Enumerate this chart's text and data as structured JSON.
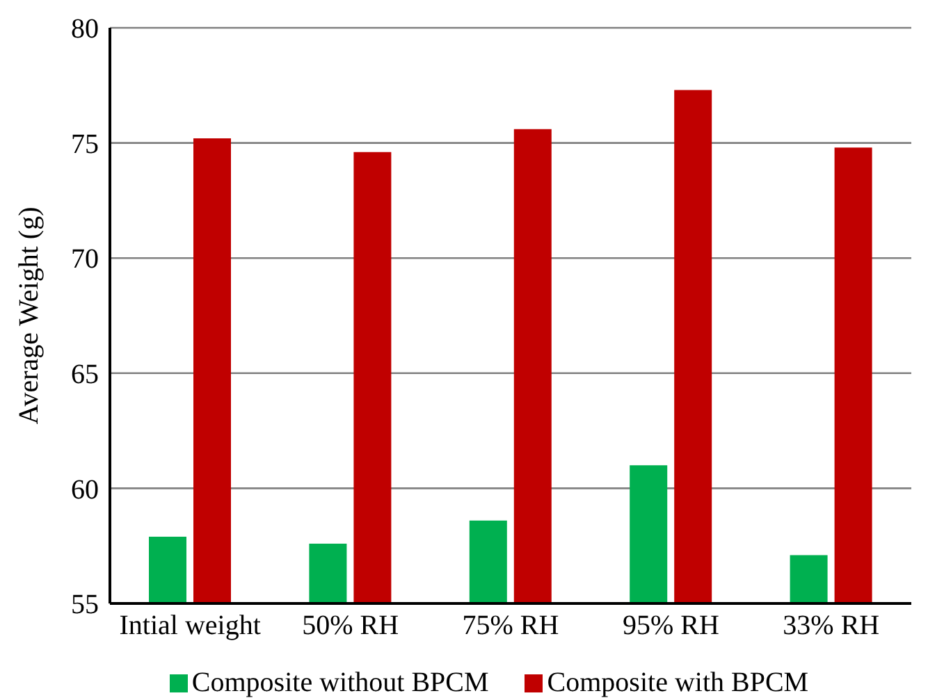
{
  "chart_data": {
    "type": "bar",
    "ylabel": "Average Weight (g)",
    "categories": [
      "Intial weight",
      "50% RH",
      "75% RH",
      "95% RH",
      "33% RH"
    ],
    "series": [
      {
        "name": "Composite without BPCM",
        "color": "#00b050",
        "values": [
          57.9,
          57.6,
          58.6,
          61.0,
          57.1
        ]
      },
      {
        "name": "Composite with BPCM",
        "color": "#c00000",
        "values": [
          75.2,
          74.6,
          75.6,
          77.3,
          74.8
        ]
      }
    ],
    "ylim": [
      55,
      80
    ],
    "yticks": [
      55,
      60,
      65,
      70,
      75,
      80
    ],
    "grid": "y",
    "legend": "bottom"
  }
}
